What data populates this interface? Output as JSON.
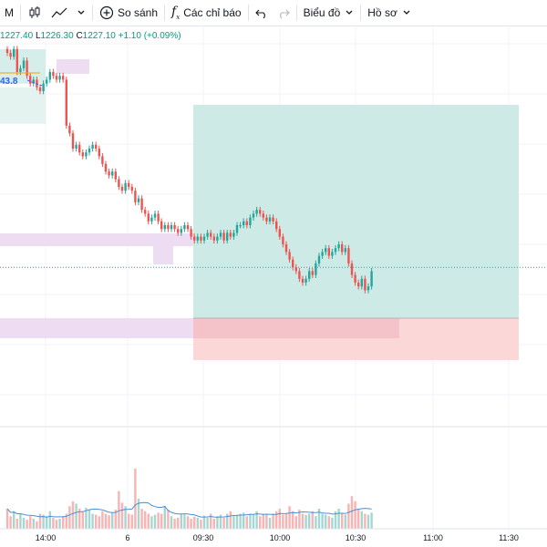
{
  "toolbar": {
    "interval": "M",
    "compare_label": "So sánh",
    "indicators_label": "Các chỉ báo",
    "chart_menu_label": "Biểu đồ",
    "profile_menu_label": "Hồ sơ"
  },
  "legend": {
    "open_partial": "1227.40",
    "low_key": "L",
    "low": "1226.30",
    "close_key": "C",
    "close": "1227.10",
    "change": "+1.10 (+0.09%)"
  },
  "price_label": "43.8",
  "colors": {
    "up": "#26a69a",
    "down": "#ef5350",
    "tp_zone": "#cdeae6",
    "sl_zone": "#fbd7d7",
    "zone_purple": "#eedcf2",
    "current_price_line": "#26a69a"
  },
  "x_axis_labels": [
    "14:00",
    "6",
    "09:30",
    "10:00",
    "10:30",
    "11:00",
    "11:30"
  ],
  "chart_data": {
    "type": "candlestick",
    "x_tick_labels": [
      "14:00",
      "6",
      "09:30",
      "10:00",
      "10:30",
      "11:00",
      "11:30"
    ],
    "close_series": [
      1245,
      1244,
      1246,
      1240,
      1241,
      1243,
      1239,
      1237,
      1238,
      1236,
      1235,
      1237,
      1238,
      1240,
      1239,
      1238,
      1239,
      1238,
      1226,
      1224,
      1220,
      1221,
      1219,
      1218,
      1219,
      1220,
      1221,
      1220,
      1218,
      1216,
      1214,
      1213,
      1214,
      1212,
      1210,
      1209,
      1211,
      1210,
      1209,
      1206,
      1207,
      1204,
      1203,
      1201,
      1202,
      1203,
      1201,
      1199,
      1200,
      1199,
      1200,
      1199,
      1198,
      1199,
      1200,
      1199,
      1197,
      1196,
      1197,
      1196,
      1197,
      1198,
      1197,
      1196,
      1197,
      1198,
      1196,
      1198,
      1197,
      1198,
      1200,
      1200,
      1201,
      1200,
      1202,
      1203,
      1204,
      1203,
      1202,
      1201,
      1202,
      1201,
      1199,
      1197,
      1195,
      1193,
      1191,
      1189,
      1188,
      1186,
      1185,
      1186,
      1188,
      1187,
      1190,
      1192,
      1193,
      1194,
      1192,
      1193,
      1194,
      1195,
      1193,
      1194,
      1190,
      1187,
      1185,
      1184,
      1186,
      1183,
      1184,
      1188
    ],
    "volume": [
      40,
      25,
      35,
      20,
      30,
      22,
      18,
      25,
      20,
      15,
      30,
      28,
      25,
      35,
      22,
      18,
      20,
      25,
      30,
      45,
      55,
      50,
      40,
      35,
      42,
      38,
      30,
      28,
      25,
      35,
      30,
      27,
      32,
      38,
      75,
      52,
      45,
      30,
      28,
      120,
      60,
      40,
      35,
      30,
      25,
      28,
      32,
      30,
      45,
      38,
      25,
      20,
      22,
      30,
      28,
      25,
      20,
      24,
      22,
      18,
      26,
      22,
      30,
      20,
      25,
      28,
      22,
      30,
      35,
      25,
      28,
      30,
      32,
      25,
      30,
      28,
      35,
      25,
      30,
      28,
      22,
      30,
      35,
      40,
      28,
      30,
      45,
      35,
      25,
      38,
      30,
      28,
      30,
      35,
      25,
      40,
      30,
      28,
      25,
      22,
      35,
      40,
      30,
      28,
      50,
      65,
      55,
      40,
      35,
      30,
      28,
      32
    ],
    "current_price": 1189,
    "position_tool": {
      "entry": 1181,
      "target": 1224,
      "stop": 1175
    },
    "zones": [
      {
        "from": 1239,
        "to": 1245
      },
      {
        "from": 1196,
        "to": 1199
      },
      {
        "from": 1179,
        "to": 1182
      }
    ]
  }
}
